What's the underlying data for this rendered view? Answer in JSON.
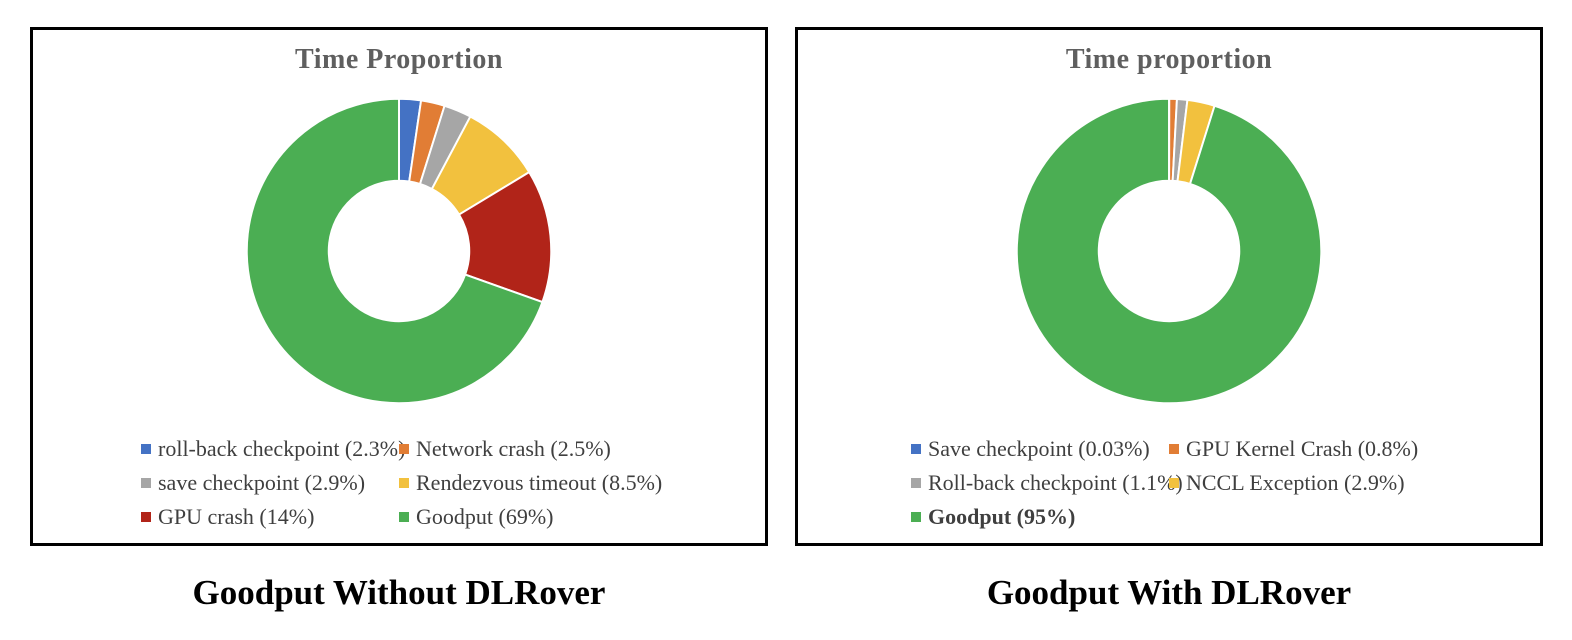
{
  "colors": {
    "blue": "#4472C4",
    "orange": "#E17D35",
    "gray": "#A6A6A6",
    "yellow": "#F2C13E",
    "red": "#B12419",
    "green": "#4BAE53",
    "title_gray": "#5F5F5F",
    "legend_text": "#3F3F3F",
    "panel_border": "#000000"
  },
  "chart_data": [
    {
      "type": "pie",
      "subtype": "doughnut",
      "title": "Time Proportion",
      "caption": "Goodput Without DLRover",
      "legend_position": "bottom",
      "labels": [
        "roll-back checkpoint (2.3%)",
        "Network crash (2.5%)",
        "save checkpoint (2.9%)",
        "Rendezvous timeout (8.5%)",
        "GPU crash (14%)",
        "Goodput (69%)"
      ],
      "values": [
        2.3,
        2.5,
        2.9,
        8.5,
        14,
        69
      ],
      "colors": [
        "#4472C4",
        "#E17D35",
        "#A6A6A6",
        "#F2C13E",
        "#B12419",
        "#4BAE53"
      ],
      "bold": [
        false,
        false,
        false,
        false,
        false,
        false
      ]
    },
    {
      "type": "pie",
      "subtype": "doughnut",
      "title": "Time proportion",
      "caption": "Goodput With DLRover",
      "legend_position": "bottom",
      "labels": [
        "Save checkpoint (0.03%)",
        "GPU Kernel Crash (0.8%)",
        "Roll-back checkpoint (1.1%)",
        "NCCL Exception (2.9%)",
        "Goodput (95%)"
      ],
      "values": [
        0.03,
        0.8,
        1.1,
        2.9,
        95
      ],
      "colors": [
        "#4472C4",
        "#E17D35",
        "#A6A6A6",
        "#F2C13E",
        "#4BAE53"
      ],
      "bold": [
        false,
        false,
        false,
        false,
        true
      ]
    }
  ]
}
